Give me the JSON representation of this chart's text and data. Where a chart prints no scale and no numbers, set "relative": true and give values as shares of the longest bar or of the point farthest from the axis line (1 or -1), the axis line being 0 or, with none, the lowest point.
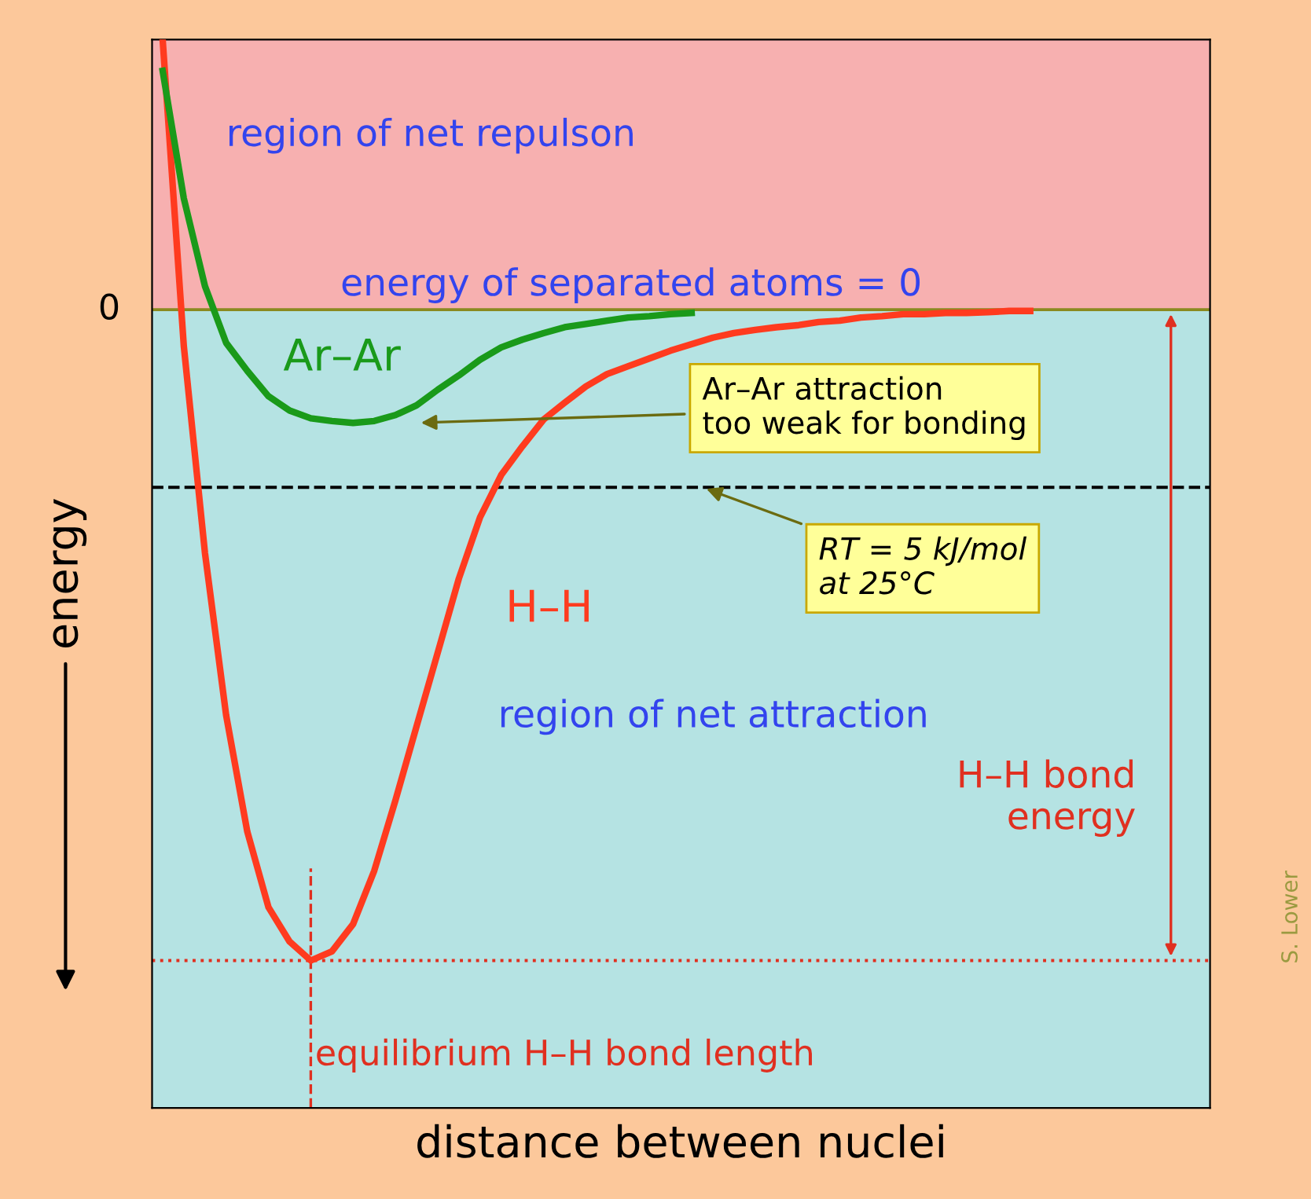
{
  "chart_data": {
    "type": "line",
    "relative": true,
    "xlabel": "distance between nuclei",
    "ylabel": "energy",
    "legend": false,
    "line_style": "solid",
    "marker": "none",
    "categories": [
      null,
      null,
      null,
      null,
      null,
      null,
      null,
      null,
      null,
      null,
      null,
      null,
      null,
      null,
      null,
      null,
      null,
      null,
      null,
      null,
      null,
      null,
      null,
      null,
      null,
      null,
      null,
      null,
      null,
      null,
      null,
      null,
      null,
      null,
      null,
      null,
      null,
      null,
      null,
      null,
      null,
      null,
      null,
      null,
      null,
      null,
      null,
      null,
      null,
      null
    ],
    "series": [
      {
        "name": "H–H",
        "color": "#ff3b1f",
        "values": [
          0.415,
          -0.056,
          -0.374,
          -0.623,
          -0.802,
          -0.918,
          -0.971,
          -1,
          -0.986,
          -0.944,
          -0.862,
          -0.754,
          -0.64,
          -0.527,
          -0.413,
          -0.319,
          -0.254,
          -0.21,
          -0.169,
          -0.143,
          -0.118,
          -0.099,
          -0.087,
          -0.075,
          -0.063,
          -0.053,
          -0.043,
          -0.036,
          -0.031,
          -0.027,
          -0.024,
          -0.019,
          -0.017,
          -0.012,
          -0.01,
          -0.007,
          -0.007,
          -0.005,
          -0.005,
          -0.004,
          -0.002,
          -0.002,
          null,
          null,
          null,
          null,
          null,
          null,
          null,
          null
        ]
      },
      {
        "name": "Ar–Ar",
        "color": "#1a9a1a",
        "values": [
          0.367,
          0.171,
          0.036,
          -0.051,
          -0.094,
          -0.133,
          -0.155,
          -0.167,
          -0.171,
          -0.174,
          -0.171,
          -0.162,
          -0.147,
          -0.123,
          -0.101,
          -0.077,
          -0.058,
          -0.046,
          -0.036,
          -0.027,
          -0.022,
          -0.017,
          -0.012,
          -0.01,
          -0.007,
          -0.005,
          null,
          null,
          null,
          null,
          null,
          null,
          null,
          null,
          null,
          null,
          null,
          null,
          null,
          null,
          null,
          null,
          null,
          null,
          null,
          null,
          null,
          null,
          null,
          null
        ]
      }
    ],
    "ref_lines": [
      {
        "axis": "y",
        "value": 0,
        "label": "0",
        "color": "#8a8a20",
        "line_style": "solid"
      },
      {
        "axis": "y",
        "value": -0.273,
        "label": null,
        "color": "#000000",
        "line_style": "dashed"
      },
      {
        "axis": "y",
        "value": -1,
        "label": null,
        "color": "#e03020",
        "line_style": "dotted"
      }
    ],
    "annotations": [
      "region of net repulson",
      "energy of separated atoms = 0",
      "region of net attraction",
      "Ar–Ar attraction\ntoo weak for bonding",
      "RT = 5 kJ/mol\nat 25°C",
      "H–H bond\nenergy",
      "equilibrium H–H bond length",
      "S. Lower"
    ]
  }
}
